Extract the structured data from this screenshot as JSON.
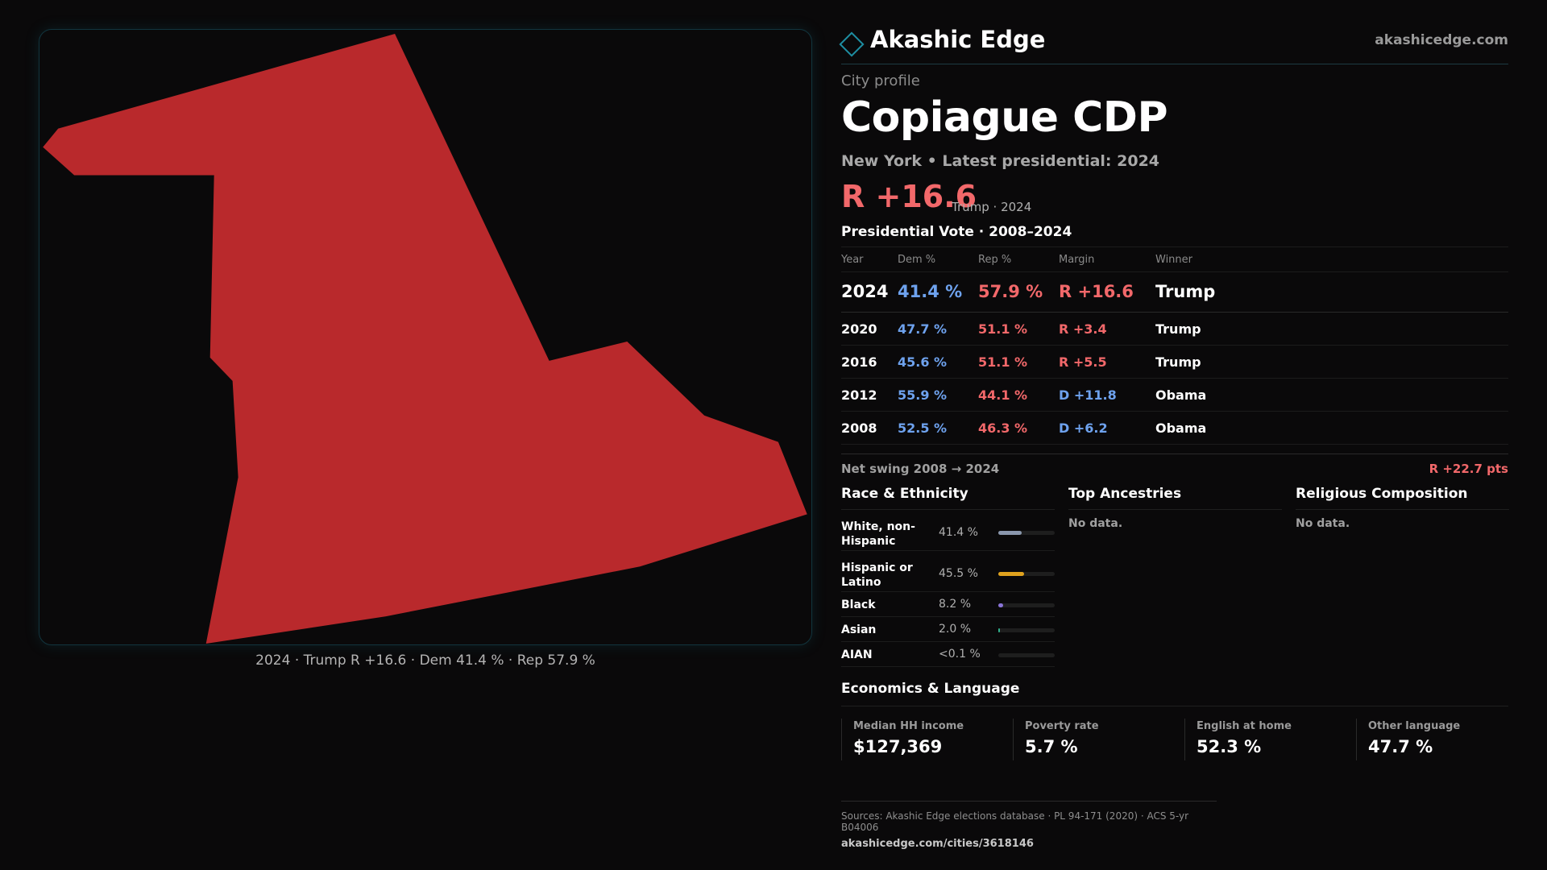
{
  "map": {
    "fill_color": "#b9292c",
    "caption": "2024 · Trump R +16.6 · Dem 41.4 % · Rep 57.9 %"
  },
  "brand": {
    "icon": "diamond-logo-icon",
    "name": "Akashic Edge",
    "url": "akashicedge.com"
  },
  "profile": {
    "kicker": "City profile",
    "title": "Copiague CDP",
    "subline": "New York  • Latest presidential: 2024",
    "margin": "R +16.6",
    "margin_note": "Trump · 2024"
  },
  "vote": {
    "title": "Presidential Vote · 2008–2024",
    "headers": [
      "Year",
      "Dem %",
      "Rep %",
      "Margin",
      "Winner"
    ],
    "rows": [
      {
        "year": "2024",
        "dem": "41.4 %",
        "rep": "57.9 %",
        "margin": "R +16.6",
        "winner": "Trump"
      },
      {
        "year": "2020",
        "dem": "47.7 %",
        "rep": "51.1 %",
        "margin": "R +3.4",
        "winner": "Trump"
      },
      {
        "year": "2016",
        "dem": "45.6 %",
        "rep": "51.1 %",
        "margin": "R +5.5",
        "winner": "Trump"
      },
      {
        "year": "2012",
        "dem": "55.9 %",
        "rep": "44.1 %",
        "margin": "D +11.8",
        "winner": "Obama"
      },
      {
        "year": "2008",
        "dem": "52.5 %",
        "rep": "46.3 %",
        "margin": "D +6.2",
        "winner": "Obama"
      }
    ],
    "swing_label": "Net swing 2008 → 2024",
    "swing_value": "R +22.7 pts"
  },
  "race": {
    "title": "Race & Ethnicity",
    "rows": [
      {
        "label": "White, non-Hispanic",
        "value": "41.4 %",
        "fraction": 0.414,
        "color": "#8a97ad"
      },
      {
        "label": "Hispanic or Latino",
        "value": "45.5 %",
        "fraction": 0.455,
        "color": "#e0a21e"
      },
      {
        "label": "Black",
        "value": "8.2 %",
        "fraction": 0.082,
        "color": "#8a74d8"
      },
      {
        "label": "Asian",
        "value": "2.0 %",
        "fraction": 0.02,
        "color": "#2fb08c"
      },
      {
        "label": "AIAN",
        "value": "<0.1 %",
        "fraction": 0.0,
        "color": "#b0b0b0"
      }
    ]
  },
  "ancestries": {
    "title": "Top Ancestries",
    "empty": "No data."
  },
  "religion": {
    "title": "Religious Composition",
    "empty": "No data."
  },
  "economics": {
    "title": "Economics & Language",
    "cards": [
      {
        "label": "Median HH income",
        "value": "$127,369"
      },
      {
        "label": "Poverty rate",
        "value": "5.7 %"
      },
      {
        "label": "English at home",
        "value": "52.3 %"
      },
      {
        "label": "Other language",
        "value": "47.7 %"
      }
    ]
  },
  "sources": {
    "line": "Sources: Akashic Edge elections database · PL 94-171 (2020) · ACS 5-yr B04006",
    "url": "akashicedge.com/cities/3618146"
  }
}
